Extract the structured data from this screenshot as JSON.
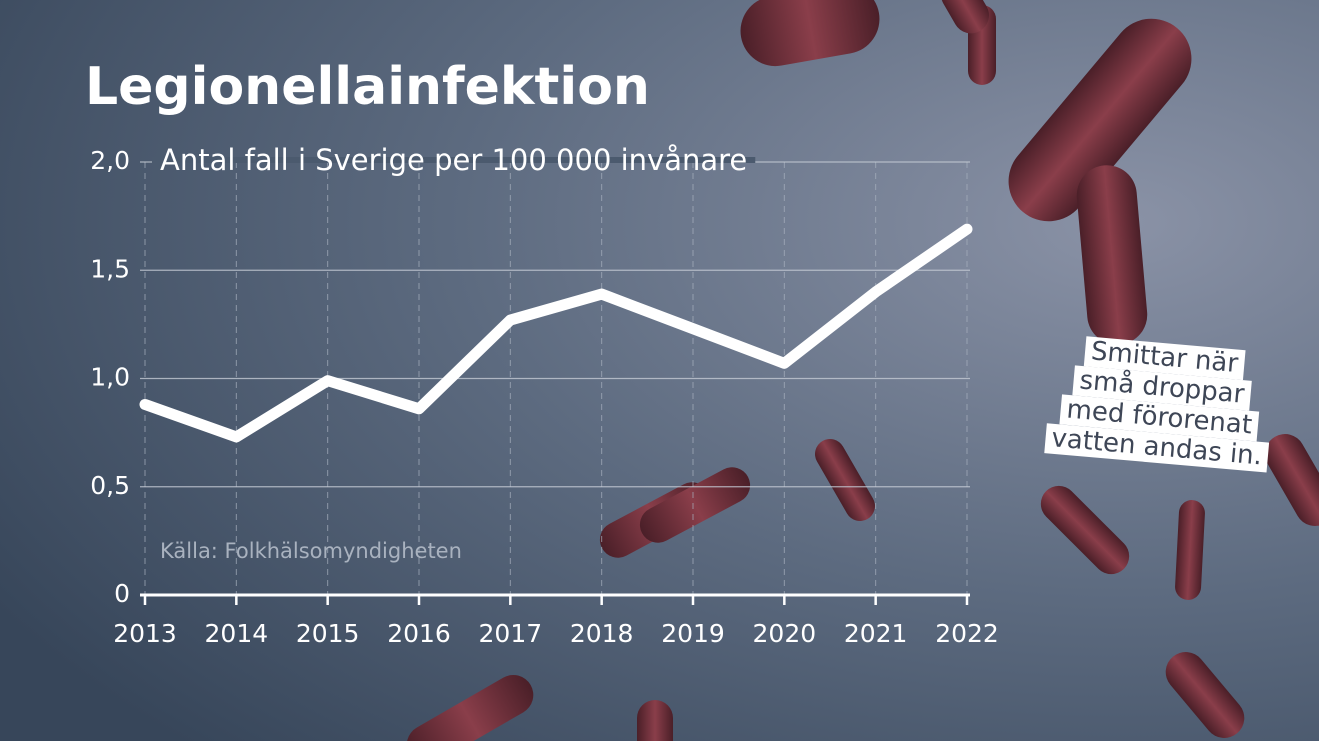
{
  "chart_data": {
    "type": "line",
    "title": "Legionellainfektion",
    "subtitle": "Antal fall i Sverige per 100 000 invånare",
    "source": "Källa: Folkhälsomyndigheten",
    "annotation": [
      "Smittar när",
      "små droppar",
      "med förorenat",
      "vatten andas in."
    ],
    "categories": [
      "2013",
      "2014",
      "2015",
      "2016",
      "2017",
      "2018",
      "2019",
      "2020",
      "2021",
      "2022"
    ],
    "values": [
      0.88,
      0.73,
      0.99,
      0.86,
      1.27,
      1.39,
      1.23,
      1.07,
      1.4,
      1.69
    ],
    "color": "#ffffff",
    "ylim": [
      0,
      2
    ],
    "yticks": [
      0,
      {
        "value": 0.5,
        "label": "0,5"
      },
      {
        "value": 1,
        "label": "1,0"
      },
      {
        "value": 1.5,
        "label": "1,5"
      },
      {
        "value": 2,
        "label": "2,0"
      }
    ],
    "grid": true
  }
}
